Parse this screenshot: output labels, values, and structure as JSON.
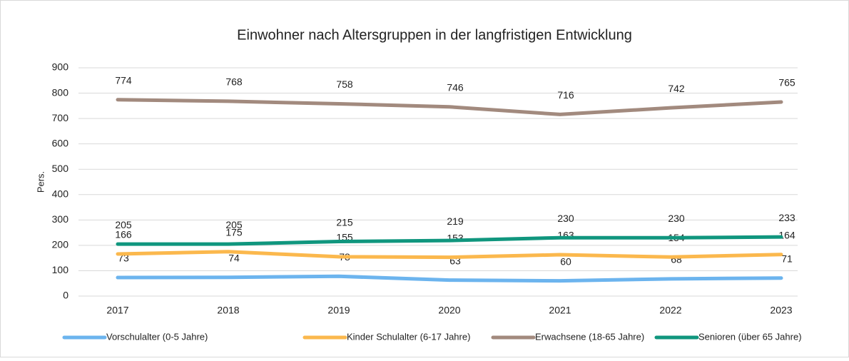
{
  "chart_data": {
    "type": "line",
    "title": "Einwohner nach Altersgruppen in der langfristigen Entwicklung",
    "y_label": "Pers.",
    "categories": [
      "2017",
      "2018",
      "2019",
      "2020",
      "2021",
      "2022",
      "2023"
    ],
    "series": [
      {
        "name": "Vorschulalter (0-5 Jahre)",
        "color": "#6cb4ee",
        "values": [
          73,
          74,
          78,
          63,
          60,
          68,
          71
        ]
      },
      {
        "name": "Kinder Schulalter (6-17 Jahre)",
        "color": "#fbb84d",
        "values": [
          166,
          175,
          155,
          153,
          163,
          154,
          164
        ]
      },
      {
        "name": "Erwachsene (18-65 Jahre)",
        "color": "#a28a7e",
        "values": [
          774,
          768,
          758,
          746,
          716,
          742,
          765
        ]
      },
      {
        "name": "Senioren (über 65 Jahre)",
        "color": "#10967e",
        "values": [
          205,
          205,
          215,
          219,
          230,
          230,
          233
        ]
      }
    ],
    "ylim": [
      0,
      900
    ],
    "yticks": [
      0,
      100,
      200,
      300,
      400,
      500,
      600,
      700,
      800,
      900
    ],
    "grid": true,
    "legend": "bottom"
  }
}
